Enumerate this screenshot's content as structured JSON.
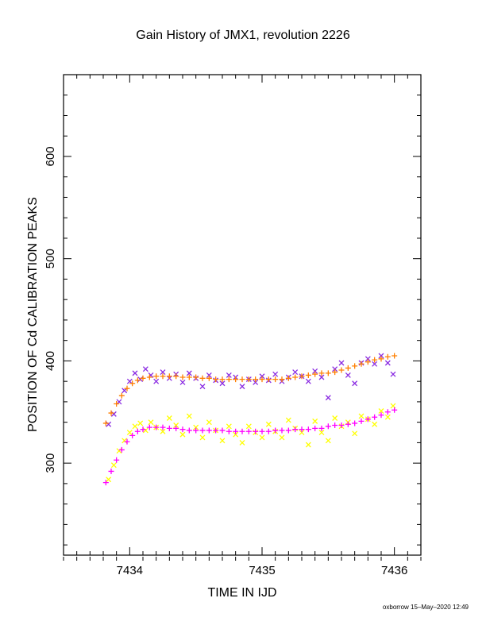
{
  "chart_data": {
    "type": "scatter",
    "title": "Gain History of JMX1, revolution 2226",
    "xlabel": "TIME IN IJD",
    "ylabel": "POSITION OF Cd CALIBRATION PEAKS",
    "xlim": [
      7433.5,
      7436.2
    ],
    "ylim": [
      210,
      680
    ],
    "xticks": [
      7434,
      7435,
      7436
    ],
    "xtick_labels": [
      "7434",
      "7435",
      "7436"
    ],
    "yticks": [
      300,
      400,
      500,
      600
    ],
    "ytick_labels": [
      "300",
      "400",
      "500",
      "600"
    ],
    "grid": false,
    "series": [
      {
        "marker": "x",
        "color": "#8a2be2",
        "x": [
          7433.84,
          7433.88,
          7433.92,
          7433.96,
          7434.0,
          7434.04,
          7434.08,
          7434.12,
          7434.16,
          7434.2,
          7434.25,
          7434.3,
          7434.35,
          7434.4,
          7434.45,
          7434.5,
          7434.55,
          7434.6,
          7434.65,
          7434.7,
          7434.75,
          7434.8,
          7434.85,
          7434.9,
          7434.95,
          7435.0,
          7435.05,
          7435.1,
          7435.15,
          7435.2,
          7435.25,
          7435.3,
          7435.35,
          7435.4,
          7435.45,
          7435.5,
          7435.55,
          7435.6,
          7435.65,
          7435.7,
          7435.75,
          7435.8,
          7435.85,
          7435.9,
          7435.95,
          7435.99
        ],
        "y": [
          338,
          348,
          360,
          371,
          380,
          388,
          382,
          392,
          386,
          380,
          389,
          383,
          387,
          379,
          388,
          383,
          375,
          386,
          381,
          378,
          386,
          384,
          375,
          382,
          379,
          385,
          381,
          387,
          380,
          384,
          389,
          385,
          380,
          390,
          384,
          364,
          392,
          398,
          386,
          378,
          398,
          402,
          397,
          405,
          398,
          387
        ]
      },
      {
        "marker": "+",
        "color": "#ff7f00",
        "x": [
          7433.82,
          7433.86,
          7433.9,
          7433.94,
          7433.98,
          7434.02,
          7434.06,
          7434.1,
          7434.15,
          7434.2,
          7434.25,
          7434.3,
          7434.35,
          7434.4,
          7434.45,
          7434.5,
          7434.55,
          7434.6,
          7434.65,
          7434.7,
          7434.75,
          7434.8,
          7434.85,
          7434.9,
          7434.95,
          7435.0,
          7435.05,
          7435.1,
          7435.15,
          7435.2,
          7435.25,
          7435.3,
          7435.35,
          7435.4,
          7435.45,
          7435.5,
          7435.55,
          7435.6,
          7435.65,
          7435.7,
          7435.75,
          7435.8,
          7435.85,
          7435.9,
          7435.95,
          7436.0
        ],
        "y": [
          339,
          349,
          358,
          366,
          373,
          378,
          381,
          383,
          384,
          385,
          385,
          385,
          385,
          384,
          384,
          384,
          383,
          383,
          382,
          382,
          382,
          382,
          382,
          382,
          382,
          382,
          382,
          382,
          382,
          383,
          384,
          385,
          386,
          387,
          388,
          388,
          389,
          391,
          393,
          395,
          397,
          399,
          401,
          402,
          404,
          405
        ]
      },
      {
        "marker": "x",
        "color": "#ffff00",
        "x": [
          7433.84,
          7433.88,
          7433.92,
          7433.96,
          7434.0,
          7434.04,
          7434.08,
          7434.12,
          7434.16,
          7434.2,
          7434.25,
          7434.3,
          7434.35,
          7434.4,
          7434.45,
          7434.5,
          7434.55,
          7434.6,
          7434.65,
          7434.7,
          7434.75,
          7434.8,
          7434.85,
          7434.9,
          7434.95,
          7435.0,
          7435.05,
          7435.1,
          7435.15,
          7435.2,
          7435.25,
          7435.3,
          7435.35,
          7435.4,
          7435.45,
          7435.5,
          7435.55,
          7435.6,
          7435.65,
          7435.7,
          7435.75,
          7435.8,
          7435.85,
          7435.9,
          7435.95,
          7435.99
        ],
        "y": [
          284,
          298,
          312,
          322,
          330,
          336,
          339,
          332,
          340,
          335,
          331,
          344,
          337,
          328,
          346,
          335,
          325,
          340,
          332,
          322,
          336,
          328,
          320,
          336,
          330,
          325,
          338,
          331,
          325,
          342,
          334,
          330,
          318,
          341,
          330,
          322,
          344,
          336,
          340,
          329,
          346,
          343,
          338,
          351,
          345,
          356
        ]
      },
      {
        "marker": "+",
        "color": "#ff00ff",
        "x": [
          7433.82,
          7433.86,
          7433.9,
          7433.94,
          7433.98,
          7434.02,
          7434.06,
          7434.1,
          7434.15,
          7434.2,
          7434.25,
          7434.3,
          7434.35,
          7434.4,
          7434.45,
          7434.5,
          7434.55,
          7434.6,
          7434.65,
          7434.7,
          7434.75,
          7434.8,
          7434.85,
          7434.9,
          7434.95,
          7435.0,
          7435.05,
          7435.1,
          7435.15,
          7435.2,
          7435.25,
          7435.3,
          7435.35,
          7435.4,
          7435.45,
          7435.5,
          7435.55,
          7435.6,
          7435.65,
          7435.7,
          7435.75,
          7435.8,
          7435.85,
          7435.9,
          7435.95,
          7436.0
        ],
        "y": [
          281,
          292,
          303,
          313,
          321,
          327,
          331,
          333,
          335,
          335,
          335,
          334,
          334,
          333,
          332,
          332,
          332,
          332,
          332,
          332,
          331,
          331,
          331,
          331,
          331,
          331,
          331,
          332,
          332,
          332,
          333,
          333,
          333,
          334,
          334,
          336,
          337,
          337,
          338,
          339,
          341,
          343,
          345,
          347,
          350,
          352
        ]
      }
    ]
  },
  "footer": "oxborrow 15–May–2020 12:49"
}
